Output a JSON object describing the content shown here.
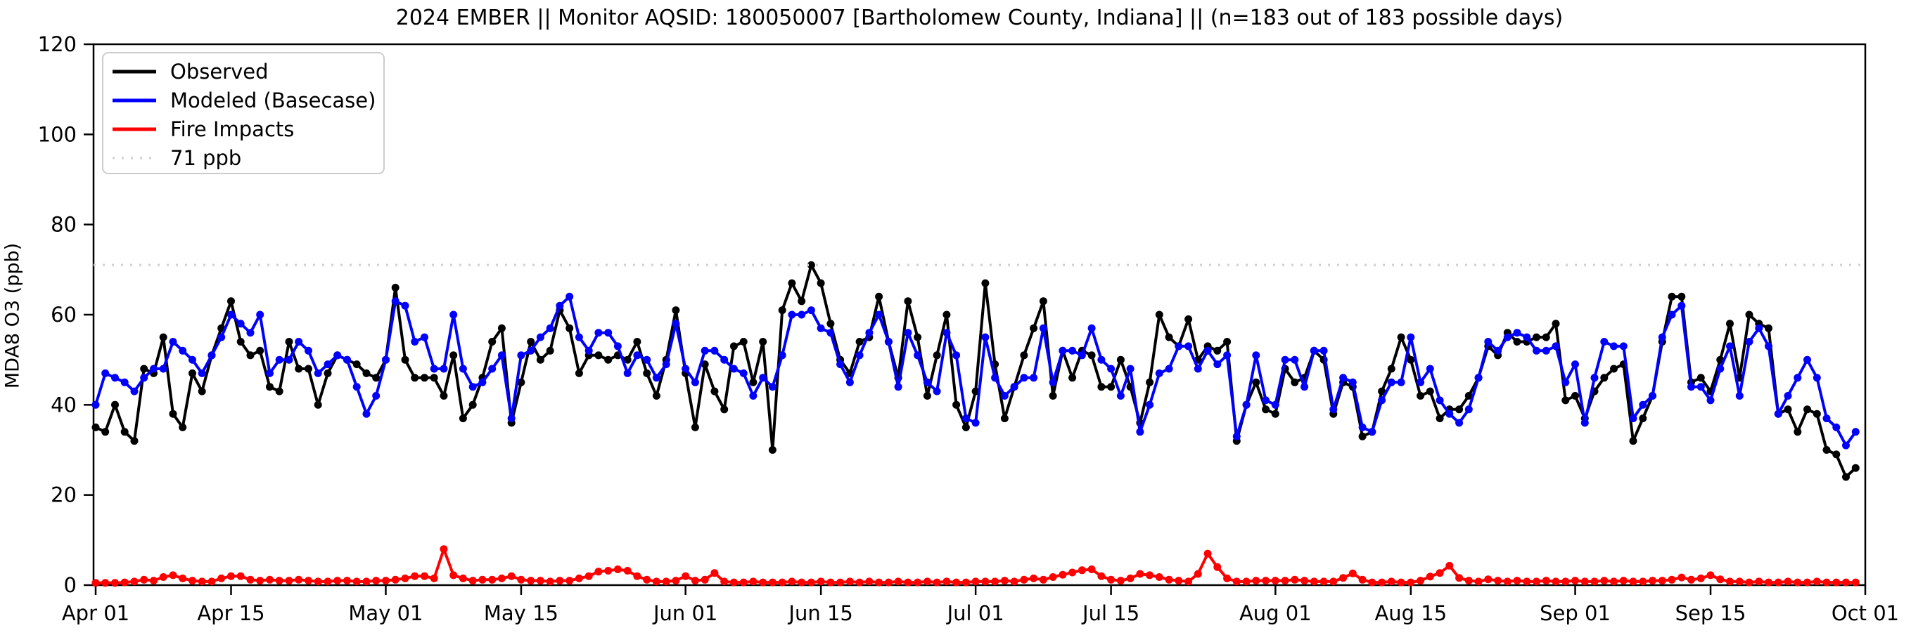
{
  "title": "2024 EMBER || Monitor AQSID: 180050007 [Bartholomew County, Indiana] || (n=183 out of 183 possible days)",
  "ylabel": "MDA8 O3 (ppb)",
  "colors": {
    "observed": "#000000",
    "modeled": "#0000ff",
    "fire": "#ff0000",
    "reference": "#d3d3d3",
    "legend_border": "#cccccc"
  },
  "chart_data": {
    "type": "line",
    "title": "2024 EMBER || Monitor AQSID: 180050007 [Bartholomew County, Indiana] || (n=183 out of 183 possible days)",
    "xlabel": "",
    "ylabel": "MDA8 O3 (ppb)",
    "ylim": [
      0,
      120
    ],
    "yticks": [
      0,
      20,
      40,
      60,
      80,
      100,
      120
    ],
    "x_start_label": "Apr 01",
    "x_end_label": "Oct 01",
    "n_days": 183,
    "x_tick_labels": [
      "Apr 01",
      "Apr 15",
      "May 01",
      "May 15",
      "Jun 01",
      "Jun 15",
      "Jul 01",
      "Jul 15",
      "Aug 01",
      "Aug 15",
      "Sep 01",
      "Sep 15",
      "Oct 01"
    ],
    "x_tick_days": [
      0,
      14,
      30,
      44,
      61,
      75,
      91,
      105,
      122,
      136,
      153,
      167,
      183
    ],
    "grid": false,
    "legend_position": "upper left",
    "reference_line": {
      "label": "71 ppb",
      "value": 71,
      "color": "#d3d3d3",
      "style": "dotted"
    },
    "series": [
      {
        "name": "Observed",
        "color": "#000000",
        "values": [
          35,
          34,
          40,
          34,
          32,
          48,
          47,
          55,
          38,
          35,
          47,
          43,
          51,
          57,
          63,
          54,
          51,
          52,
          44,
          43,
          54,
          48,
          48,
          40,
          47,
          51,
          50,
          49,
          47,
          46,
          50,
          66,
          50,
          46,
          46,
          46,
          42,
          51,
          37,
          40,
          46,
          54,
          57,
          36,
          45,
          54,
          50,
          52,
          61,
          57,
          47,
          51,
          51,
          50,
          51,
          50,
          54,
          47,
          42,
          50,
          61,
          47,
          35,
          49,
          43,
          39,
          53,
          54,
          45,
          54,
          30,
          61,
          67,
          63,
          71,
          67,
          58,
          50,
          47,
          54,
          55,
          64,
          54,
          46,
          63,
          55,
          42,
          51,
          60,
          40,
          35,
          43,
          67,
          49,
          37,
          44,
          51,
          57,
          63,
          42,
          52,
          46,
          52,
          51,
          44,
          44,
          50,
          44,
          36,
          45,
          60,
          55,
          53,
          59,
          50,
          53,
          52,
          54,
          32,
          40,
          45,
          39,
          38,
          48,
          45,
          46,
          52,
          50,
          38,
          45,
          44,
          33,
          34,
          43,
          48,
          55,
          50,
          42,
          43,
          37,
          39,
          39,
          42,
          46,
          53,
          51,
          56,
          54,
          54,
          55,
          55,
          58,
          41,
          42,
          37,
          43,
          46,
          48,
          49,
          32,
          37,
          42,
          54,
          64,
          64,
          45,
          46,
          43,
          50,
          58,
          46,
          60,
          58,
          57,
          38,
          39,
          34,
          39,
          38,
          30,
          29,
          24,
          26
        ]
      },
      {
        "name": "Modeled (Basecase)",
        "color": "#0000ff",
        "values": [
          40,
          47,
          46,
          45,
          43,
          46,
          48,
          48,
          54,
          52,
          50,
          47,
          51,
          55,
          60,
          58,
          56,
          60,
          47,
          50,
          50,
          54,
          52,
          47,
          49,
          51,
          50,
          44,
          38,
          42,
          50,
          63,
          62,
          54,
          55,
          48,
          48,
          60,
          48,
          44,
          45,
          48,
          51,
          37,
          51,
          52,
          55,
          57,
          62,
          64,
          55,
          52,
          56,
          56,
          53,
          47,
          51,
          50,
          46,
          49,
          58,
          48,
          45,
          52,
          52,
          50,
          48,
          47,
          42,
          46,
          44,
          51,
          60,
          60,
          61,
          57,
          56,
          49,
          45,
          51,
          56,
          60,
          54,
          44,
          56,
          51,
          45,
          43,
          56,
          51,
          37,
          36,
          55,
          46,
          42,
          44,
          46,
          46,
          57,
          45,
          52,
          52,
          51,
          57,
          50,
          48,
          42,
          48,
          34,
          40,
          47,
          48,
          53,
          53,
          48,
          52,
          49,
          51,
          33,
          40,
          51,
          41,
          40,
          50,
          50,
          44,
          52,
          52,
          39,
          46,
          45,
          35,
          34,
          41,
          45,
          45,
          55,
          45,
          48,
          41,
          38,
          36,
          39,
          46,
          54,
          52,
          55,
          56,
          55,
          52,
          52,
          53,
          45,
          49,
          36,
          46,
          54,
          53,
          53,
          37,
          40,
          42,
          55,
          60,
          62,
          44,
          44,
          41,
          48,
          53,
          42,
          54,
          57,
          53,
          38,
          42,
          46,
          50,
          46,
          37,
          35,
          31,
          34
        ]
      },
      {
        "name": "Fire Impacts",
        "color": "#ff0000",
        "values": [
          0.5,
          0.5,
          0.5,
          0.6,
          0.8,
          1.2,
          1,
          1.8,
          2.2,
          1.5,
          1,
          0.8,
          0.8,
          1.5,
          2,
          2,
          1.2,
          1,
          1.2,
          1,
          1,
          1.2,
          1,
          0.8,
          0.8,
          1,
          1,
          0.8,
          0.8,
          1,
          1,
          1.2,
          1.5,
          2,
          2,
          1.5,
          8,
          2.2,
          1.5,
          1,
          1.2,
          1.2,
          1.5,
          2,
          1.2,
          1,
          1,
          0.8,
          1,
          1,
          1.5,
          2,
          3,
          3.2,
          3.5,
          3.2,
          2,
          1.2,
          0.8,
          0.8,
          1,
          2,
          1,
          1.2,
          2.7,
          0.8,
          0.6,
          0.6,
          0.8,
          0.6,
          0.6,
          0.6,
          0.8,
          0.6,
          0.6,
          0.8,
          0.6,
          0.6,
          0.8,
          0.6,
          0.8,
          0.6,
          0.6,
          0.8,
          0.6,
          0.6,
          0.8,
          0.6,
          0.8,
          0.6,
          0.6,
          0.8,
          0.8,
          0.8,
          1,
          0.8,
          1.2,
          1.5,
          1.2,
          1.8,
          2.3,
          2.8,
          3.3,
          3.5,
          2,
          1.2,
          1,
          1.5,
          2.5,
          2.2,
          1.8,
          1.2,
          1,
          0.8,
          2.5,
          7,
          4,
          1.5,
          0.8,
          0.8,
          1,
          1,
          1,
          1,
          1.2,
          1,
          0.8,
          0.8,
          0.8,
          1.6,
          2.6,
          1.2,
          0.6,
          0.6,
          0.8,
          0.6,
          0.6,
          1,
          1.9,
          2.7,
          4.3,
          1.6,
          1,
          0.8,
          1.3,
          1,
          0.8,
          1,
          0.8,
          0.8,
          1,
          0.8,
          0.8,
          1,
          0.8,
          0.8,
          1,
          0.8,
          1,
          0.8,
          0.8,
          1,
          1,
          1.2,
          1.7,
          1.2,
          1.5,
          2.2,
          1.3,
          0.8,
          0.8,
          0.6,
          0.8,
          0.6,
          0.6,
          0.8,
          0.6,
          0.6,
          0.8,
          0.6,
          0.6,
          0.6,
          0.6
        ]
      }
    ]
  },
  "legend": {
    "entries": [
      {
        "label": "Observed",
        "color": "#000000",
        "style": "solid"
      },
      {
        "label": "Modeled (Basecase)",
        "color": "#0000ff",
        "style": "solid"
      },
      {
        "label": "Fire Impacts",
        "color": "#ff0000",
        "style": "solid"
      },
      {
        "label": "71 ppb",
        "color": "#d3d3d3",
        "style": "dotted"
      }
    ]
  }
}
